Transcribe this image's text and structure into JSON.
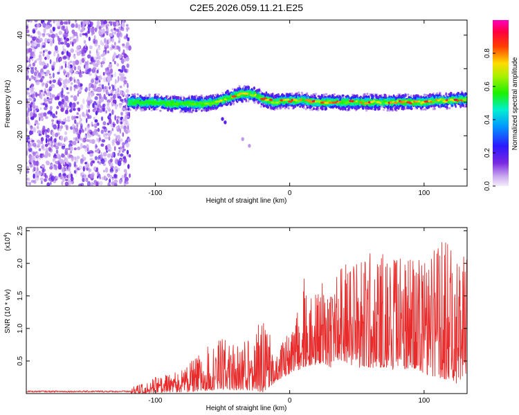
{
  "figure_title": "C2E5.2026.059.11.21.E25",
  "colors": {
    "snr_line": "#e82c2c",
    "frame": "#000000",
    "background": "#ffffff"
  },
  "chart_data": [
    {
      "type": "heatmap",
      "title": "C2E5.2026.059.11.21.E25",
      "xlabel": "Height of straight line (km)",
      "ylabel": "Frequency (Hz)",
      "xlim": [
        -196,
        132
      ],
      "ylim": [
        -50,
        49
      ],
      "x_ticks": [
        -100,
        0,
        100
      ],
      "x_tick_labels": [
        "-100",
        "0",
        "100"
      ],
      "y_ticks": [
        -40,
        -20,
        0,
        20,
        40
      ],
      "y_tick_labels": [
        "-40",
        "-20",
        "0",
        "20",
        "40"
      ],
      "colorbar": {
        "label": "Normalized spectral amplitude",
        "range": [
          0,
          1
        ],
        "ticks": [
          0.0,
          0.2,
          0.4,
          0.6,
          0.8
        ],
        "tick_labels": [
          "0.0",
          "0.2",
          "0.4",
          "0.6",
          "0.8"
        ],
        "colormap": "rainbow (lavender-purple-blue-cyan-green-yellow-red-magenta)"
      },
      "noise_region_x": [
        -196,
        -120
      ],
      "signal_ridge": {
        "x": [
          -120,
          -100,
          -85,
          -75,
          -65,
          -55,
          -48,
          -40,
          -35,
          -30,
          -25,
          -20,
          -15,
          -10,
          -5,
          0,
          10,
          20,
          40,
          60,
          80,
          100,
          110,
          120,
          132
        ],
        "freq_hz": [
          0,
          0,
          -1,
          -1,
          -1,
          0,
          2,
          4,
          5,
          5,
          4,
          2,
          1,
          0,
          1,
          1,
          1,
          0,
          0,
          0,
          0,
          0,
          1,
          1,
          2
        ],
        "peak_amplitude": [
          0.5,
          0.55,
          0.6,
          0.6,
          0.65,
          0.7,
          0.8,
          0.95,
          0.9,
          0.95,
          0.85,
          0.9,
          0.9,
          0.85,
          0.95,
          0.9,
          0.9,
          0.95,
          0.95,
          0.9,
          0.9,
          0.95,
          0.9,
          0.95,
          0.9
        ]
      },
      "secondary_trace": {
        "x": [
          -50,
          -48,
          -35,
          -30
        ],
        "freq_hz": [
          -10,
          -12,
          -22,
          -26
        ]
      }
    },
    {
      "type": "line",
      "xlabel": "Height of straight line (km)",
      "ylabel": "SNR (10 * v/v)",
      "y_multiplier_label": "(x10",
      "y_multiplier_exp": "4",
      "y_multiplier_close": ")",
      "xlim": [
        -196,
        132
      ],
      "ylim": [
        0,
        2.55
      ],
      "x_ticks": [
        -100,
        0,
        100
      ],
      "x_tick_labels": [
        "-100",
        "0",
        "100"
      ],
      "y_ticks": [
        0.5,
        1.0,
        1.5,
        2.0,
        2.5
      ],
      "y_tick_labels": [
        "0.5",
        "1.0",
        "1.5",
        "2.0",
        "2.5"
      ],
      "series": [
        {
          "name": "SNR",
          "envelope_x": [
            -196,
            -125,
            -115,
            -100,
            -90,
            -80,
            -70,
            -60,
            -50,
            -40,
            -30,
            -20,
            -15,
            -10,
            -5,
            0,
            5,
            10,
            20,
            30,
            40,
            50,
            60,
            70,
            80,
            90,
            100,
            110,
            120,
            125,
            132
          ],
          "envelope_max": [
            0.06,
            0.06,
            0.12,
            0.25,
            0.3,
            0.38,
            0.55,
            0.75,
            0.85,
            0.75,
            0.9,
            1.15,
            0.95,
            0.65,
            0.8,
            0.95,
            1.2,
            1.85,
            1.6,
            1.85,
            2.0,
            2.1,
            2.2,
            2.2,
            2.15,
            2.2,
            2.0,
            2.35,
            2.4,
            2.2,
            2.1
          ],
          "envelope_min": [
            0.0,
            0.0,
            0.0,
            0.01,
            0.02,
            0.02,
            0.03,
            0.05,
            0.05,
            0.05,
            0.05,
            0.02,
            0.1,
            0.2,
            0.25,
            0.3,
            0.35,
            0.4,
            0.45,
            0.4,
            0.5,
            0.4,
            0.4,
            0.4,
            0.35,
            0.4,
            0.3,
            0.25,
            0.2,
            0.15,
            0.2
          ]
        }
      ]
    }
  ]
}
